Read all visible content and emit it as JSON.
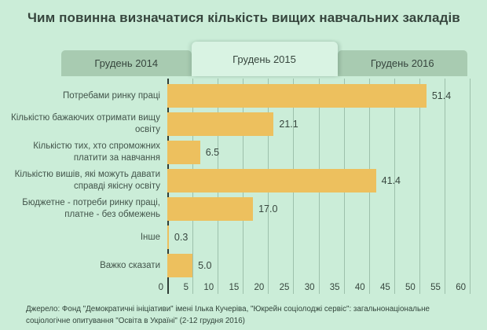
{
  "title": "Чим повинна визначатися кількість вищих навчальних закладів",
  "tabs": {
    "items": [
      {
        "label": "Грудень 2014",
        "active": false
      },
      {
        "label": "Грудень 2015",
        "active": true
      },
      {
        "label": "Грудень 2016",
        "active": false
      }
    ]
  },
  "chart_data": {
    "type": "bar",
    "orientation": "horizontal",
    "title": "Чим повинна визначатися кількість вищих навчальних закладів",
    "categories": [
      "Потребами ринку праці",
      "Кількістю бажаючих отримати вищу освіту",
      "Кількістю тих, хто спроможних платити за навчання",
      "Кількістю вишів, які можуть давати справді якісну освіту",
      "Бюджетне - потреби ринку праці, платне - без обмежень",
      "Інше",
      "Важко сказати"
    ],
    "values": [
      51.4,
      21.1,
      6.5,
      41.4,
      17.0,
      0.3,
      5.0
    ],
    "value_labels": [
      "51.4",
      "21.1",
      "6.5",
      "41.4",
      "17.0",
      "0.3",
      "5.0"
    ],
    "xlabel": "",
    "ylabel": "",
    "xlim": [
      0,
      60
    ],
    "xticks": [
      0,
      5,
      10,
      15,
      20,
      25,
      30,
      35,
      40,
      45,
      50,
      55,
      60
    ],
    "grid": true,
    "legend": false
  },
  "footer": {
    "source": "Джерело: Фонд \"Демократичні ініціативи\" імені Ілька Кучеріва, \"Юкрейн соціолоджі сервіс\": загальнонаціональне соціологічне опитування \"Освіта в Україні\" (2-12 грудня 2016)"
  },
  "colors": {
    "background": "#cbedd8",
    "tab_inactive": "#a8cbb1",
    "tab_active": "#d9f3e3",
    "bar": "#edc05e",
    "gridline": "#9dc0ab",
    "axis": "#2e3d36",
    "text_dark": "#36453d",
    "text_label": "#42544a",
    "text_footer": "#31443a"
  }
}
